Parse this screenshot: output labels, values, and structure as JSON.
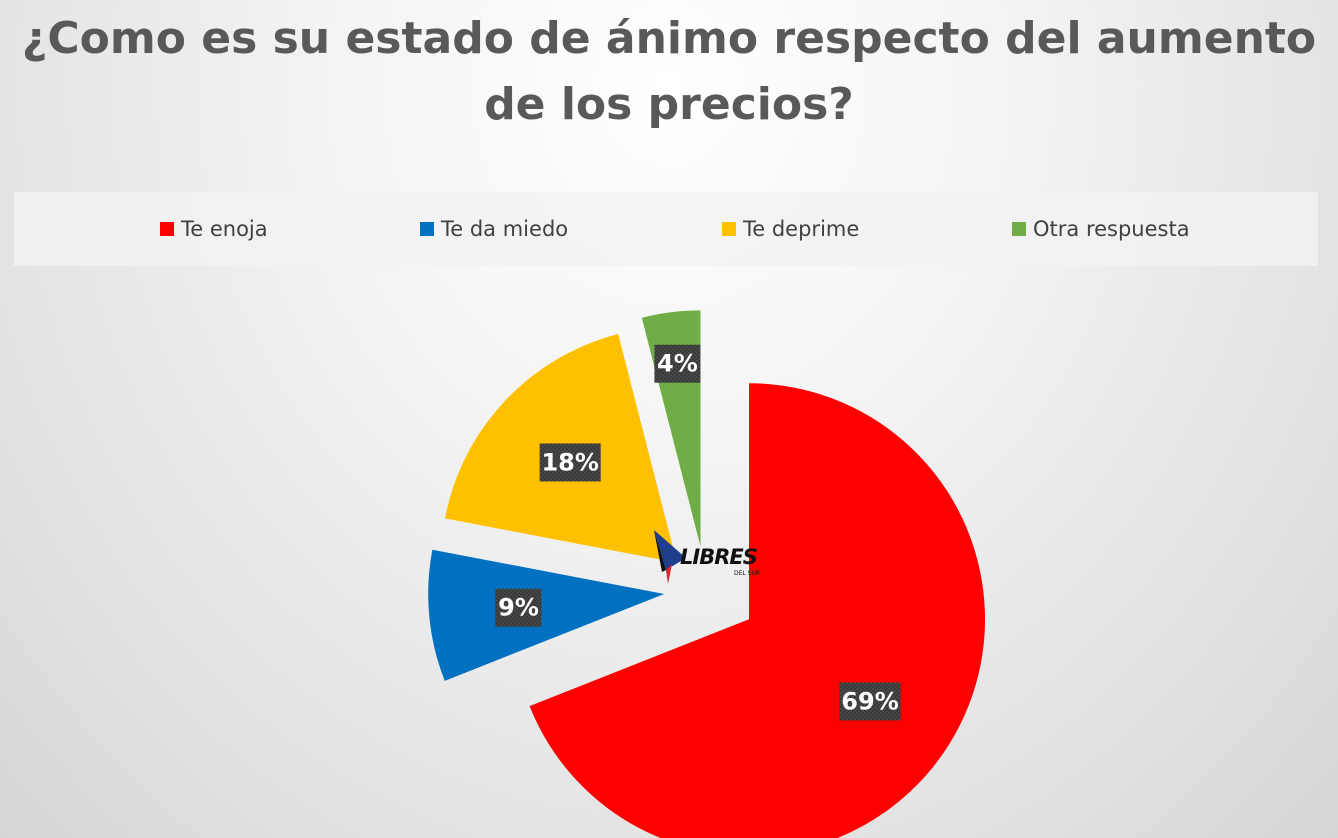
{
  "chart_data": {
    "type": "pie",
    "title": "¿Como es su estado de ánimo respecto del aumento de los precios?",
    "legend_position": "top",
    "exploded": true,
    "categories": [
      "Te enoja",
      "Te da miedo",
      "Te deprime",
      "Otra respuesta"
    ],
    "values": [
      69,
      9,
      18,
      4
    ],
    "labels": [
      "69%",
      "9%",
      "18%",
      "4%"
    ],
    "colors": [
      "#ff0000",
      "#0070c0",
      "#ffc000",
      "#70ad47"
    ],
    "unit": "%"
  },
  "logo": {
    "name": "libres-del-sur-logo",
    "text": "LIBRES",
    "subtext": "DEL SUR"
  },
  "colors": {
    "title": "#595959",
    "label_box": "#404040",
    "label_text": "#ffffff"
  }
}
